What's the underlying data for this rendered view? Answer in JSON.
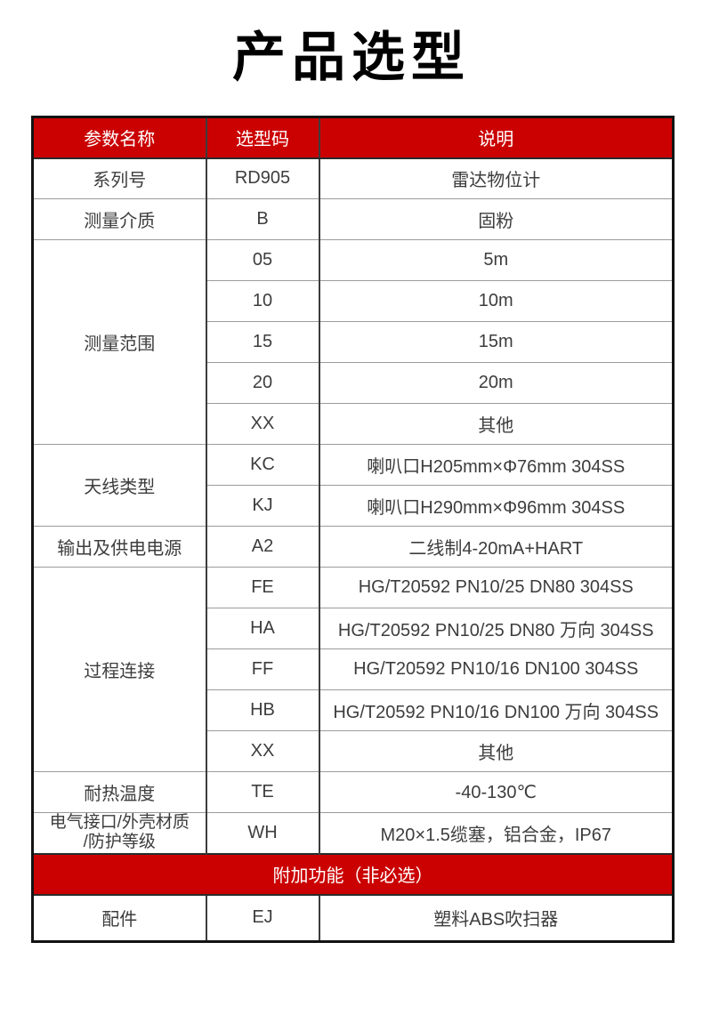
{
  "colors": {
    "accent_red": "#cb0101",
    "header_text": "#ffffff",
    "body_text": "#3d3d3d",
    "border_dark": "#131313",
    "border_gray": "#9b9b9b"
  },
  "page": {
    "title": "产品选型"
  },
  "table": {
    "header": {
      "param": "参数名称",
      "code": "选型码",
      "desc": "说明"
    },
    "rows": {
      "series": {
        "param": "系列号",
        "code": "RD905",
        "desc": "雷达物位计"
      },
      "medium": {
        "param": "测量介质",
        "code": "B",
        "desc": "固粉"
      },
      "range": {
        "param": "测量范围",
        "options": [
          {
            "code": "05",
            "desc": "5m"
          },
          {
            "code": "10",
            "desc": "10m"
          },
          {
            "code": "15",
            "desc": "15m"
          },
          {
            "code": "20",
            "desc": "20m"
          },
          {
            "code": "XX",
            "desc": "其他"
          }
        ]
      },
      "antenna": {
        "param": "天线类型",
        "options": [
          {
            "code": "KC",
            "desc": "喇叭口H205mm×Φ76mm 304SS"
          },
          {
            "code": "KJ",
            "desc": "喇叭口H290mm×Φ96mm 304SS"
          }
        ]
      },
      "output": {
        "param": "输出及供电电源",
        "code": "A2",
        "desc": "二线制4-20mA+HART"
      },
      "process": {
        "param": "过程连接",
        "options": [
          {
            "code": "FE",
            "desc": "HG/T20592 PN10/25 DN80 304SS"
          },
          {
            "code": "HA",
            "desc": "HG/T20592 PN10/25 DN80 万向 304SS"
          },
          {
            "code": "FF",
            "desc": "HG/T20592 PN10/16 DN100 304SS"
          },
          {
            "code": "HB",
            "desc": "HG/T20592 PN10/16 DN100 万向 304SS"
          },
          {
            "code": "XX",
            "desc": "其他"
          }
        ]
      },
      "temp": {
        "param": "耐热温度",
        "code": "TE",
        "desc": "-40-130℃"
      },
      "electrical": {
        "param_line1": "电气接口/外壳材质",
        "param_line2": "/防护等级",
        "code": "WH",
        "desc": "M20×1.5缆塞，铝合金，IP67"
      },
      "addon_header": "附加功能（非必选）",
      "accessory": {
        "param": "配件",
        "code": "EJ",
        "desc": "塑料ABS吹扫器"
      }
    }
  }
}
